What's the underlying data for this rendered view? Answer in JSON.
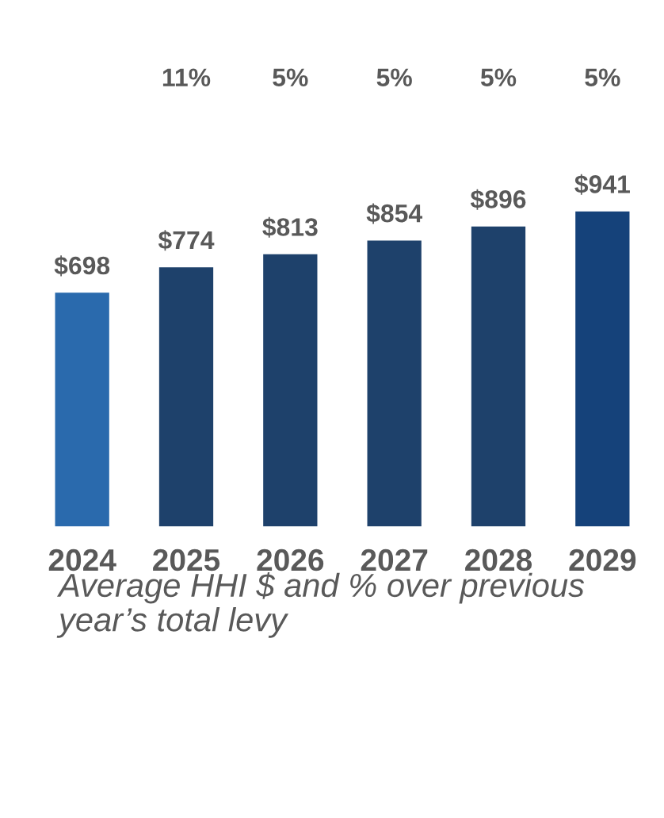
{
  "chart_data": {
    "type": "bar",
    "categories": [
      "2024",
      "2025",
      "2026",
      "2027",
      "2028",
      "2029"
    ],
    "values": [
      698,
      774,
      813,
      854,
      896,
      941
    ],
    "colors": [
      "#2a6aad",
      "#1e416b",
      "#1e416b",
      "#1e416b",
      "#1e416b",
      "#15427a"
    ],
    "data_labels": true,
    "value_labels": [
      "$698",
      "$774",
      "$813",
      "$854",
      "$896",
      "$941"
    ],
    "annotations": [
      "11%",
      "5%",
      "5%",
      "5%",
      "5%",
      "Average HHI $ and % over previous year’s total levy"
    ],
    "tick_labels": "x",
    "grid": false,
    "legend": false
  }
}
